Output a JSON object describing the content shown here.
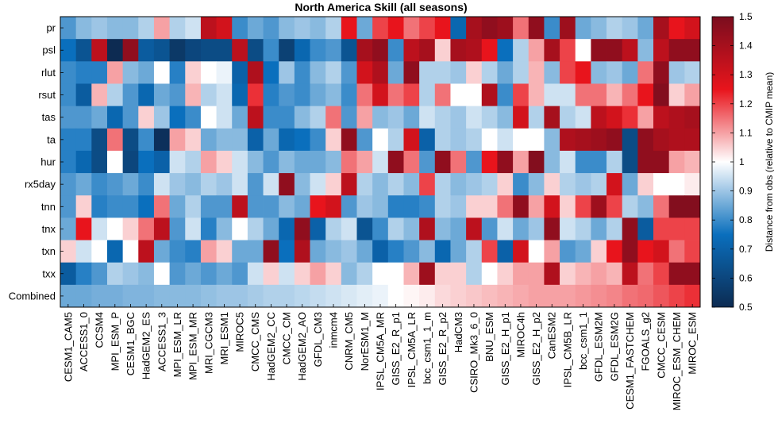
{
  "chart_data": {
    "type": "heatmap",
    "title": "North America Skill (all seasons)",
    "rows": [
      "pr",
      "psl",
      "rlut",
      "rsut",
      "tas",
      "ta",
      "hur",
      "rx5day",
      "tnn",
      "tnx",
      "txn",
      "txx",
      "Combined"
    ],
    "columns": [
      "CESM1_CAM5",
      "ACCESS1_0",
      "CCSM4",
      "MPI_ESM_P",
      "CESM1_BGC",
      "HadGEM2_ES",
      "ACCESS1_3",
      "MPI_ESM_LR",
      "MPI_ESM_MR",
      "MRI_CGCM3",
      "MRI_ESM1",
      "MIROC5",
      "CMCC_CMS",
      "HadGEM2_CC",
      "CMCC_CM",
      "HadGEM2_AO",
      "GFDL_CM3",
      "inmcm4",
      "CNRM_CM5",
      "NorESM1_M",
      "IPSL_CM5A_MR",
      "GISS_E2_R_p1",
      "IPSL_CM5A_LR",
      "bcc_csm1_1_m",
      "GISS_E2_R_p2",
      "HadCM3",
      "CSIRO_Mk3_6_0",
      "BNU_ESM",
      "GISS_E2_H_p1",
      "MIROC4h",
      "GISS_E2_H_p2",
      "CanESM2",
      "IPSL_CM5B_LR",
      "bcc_csm1_1",
      "GFDL_ESM2M",
      "GFDL_ESM2G",
      "CESM1_FASTCHEM",
      "FGOALS_g2",
      "CMCC_CESM",
      "MIROC_ESM_CHEM",
      "MIROC_ESM"
    ],
    "values": [
      [
        0.82,
        0.88,
        0.9,
        0.88,
        0.88,
        0.92,
        1.1,
        0.92,
        0.95,
        1.35,
        1.3,
        0.8,
        0.85,
        0.82,
        0.88,
        0.9,
        0.88,
        0.92,
        1.25,
        0.85,
        1.2,
        1.25,
        1.15,
        1.2,
        1.25,
        0.72,
        1.4,
        1.45,
        1.42,
        1.15,
        1.45,
        0.8,
        1.42,
        0.85,
        0.88,
        0.92,
        0.9,
        0.85,
        1.4,
        1.25,
        1.3
      ],
      [
        0.75,
        0.65,
        1.35,
        0.5,
        1.45,
        0.68,
        0.65,
        0.55,
        0.6,
        0.62,
        0.62,
        1.35,
        0.62,
        0.8,
        0.58,
        0.72,
        0.8,
        0.82,
        0.65,
        1.4,
        1.45,
        0.8,
        1.35,
        1.4,
        1.05,
        1.4,
        1.38,
        1.25,
        0.75,
        0.92,
        1.1,
        1.4,
        1.2,
        1.0,
        1.45,
        1.45,
        1.35,
        0.88,
        1.35,
        1.45,
        1.45
      ],
      [
        0.8,
        0.78,
        0.78,
        1.1,
        0.88,
        0.85,
        1.0,
        0.78,
        1.05,
        1.0,
        0.98,
        0.7,
        1.38,
        0.75,
        0.9,
        0.8,
        0.88,
        0.92,
        0.82,
        1.3,
        1.38,
        0.85,
        1.45,
        0.92,
        0.92,
        0.9,
        1.05,
        0.92,
        0.85,
        0.92,
        1.08,
        0.88,
        1.2,
        1.25,
        0.88,
        0.9,
        0.85,
        1.15,
        1.45,
        0.9,
        0.92
      ],
      [
        0.8,
        0.68,
        1.08,
        0.92,
        0.82,
        0.72,
        0.85,
        0.82,
        1.08,
        0.92,
        0.95,
        0.72,
        1.22,
        0.78,
        0.82,
        0.8,
        0.85,
        0.88,
        0.8,
        1.15,
        1.3,
        1.15,
        1.2,
        0.92,
        1.15,
        1.0,
        1.0,
        1.38,
        0.8,
        1.2,
        1.08,
        0.95,
        0.95,
        1.15,
        1.15,
        1.08,
        1.15,
        1.25,
        1.48,
        1.05,
        1.1
      ],
      [
        0.82,
        0.82,
        0.85,
        0.72,
        0.82,
        1.05,
        0.9,
        0.75,
        0.8,
        1.0,
        0.95,
        0.85,
        1.35,
        0.8,
        0.8,
        0.88,
        0.92,
        1.15,
        0.82,
        1.1,
        0.88,
        0.9,
        0.85,
        0.95,
        0.92,
        0.9,
        0.95,
        0.92,
        0.88,
        1.3,
        0.92,
        1.4,
        0.92,
        0.95,
        1.35,
        1.3,
        1.22,
        1.1,
        1.35,
        1.38,
        1.4
      ],
      [
        0.78,
        0.78,
        0.62,
        1.15,
        0.62,
        0.8,
        0.52,
        1.1,
        1.05,
        0.85,
        0.88,
        0.88,
        0.7,
        0.85,
        0.72,
        0.75,
        0.8,
        1.05,
        1.45,
        0.82,
        1.0,
        0.92,
        1.3,
        0.7,
        0.92,
        0.9,
        0.92,
        1.0,
        0.95,
        1.0,
        1.0,
        0.88,
        1.38,
        1.4,
        1.42,
        1.45,
        0.62,
        1.45,
        1.4,
        1.38,
        1.38
      ],
      [
        0.78,
        0.72,
        0.62,
        1.0,
        0.6,
        0.75,
        0.7,
        0.95,
        0.92,
        1.1,
        1.05,
        0.95,
        0.88,
        0.82,
        0.88,
        0.85,
        0.85,
        0.88,
        1.15,
        1.1,
        0.95,
        1.45,
        1.15,
        0.82,
        1.45,
        1.15,
        0.82,
        1.25,
        1.45,
        1.1,
        1.48,
        0.88,
        0.95,
        0.8,
        0.8,
        0.92,
        0.62,
        1.45,
        1.45,
        1.1,
        1.08
      ],
      [
        0.82,
        0.85,
        0.8,
        0.82,
        0.85,
        0.8,
        0.95,
        0.9,
        0.88,
        0.92,
        0.9,
        0.95,
        0.82,
        0.95,
        1.45,
        0.88,
        0.95,
        1.05,
        1.35,
        0.92,
        0.88,
        0.92,
        0.88,
        1.2,
        0.92,
        0.88,
        0.9,
        0.92,
        1.05,
        0.8,
        0.88,
        1.05,
        0.92,
        0.9,
        0.92,
        1.3,
        0.85,
        1.05,
        1.0,
        1.0,
        1.02
      ],
      [
        0.82,
        1.05,
        0.78,
        0.8,
        0.8,
        0.75,
        1.15,
        0.85,
        0.92,
        0.82,
        0.82,
        1.35,
        0.82,
        0.82,
        0.88,
        0.85,
        1.25,
        1.3,
        0.82,
        0.9,
        0.88,
        0.78,
        0.78,
        0.8,
        0.92,
        0.9,
        1.05,
        1.05,
        1.15,
        1.45,
        1.1,
        1.3,
        1.05,
        1.2,
        1.42,
        1.2,
        0.92,
        0.88,
        1.15,
        1.48,
        1.48
      ],
      [
        0.85,
        1.25,
        0.95,
        1.0,
        1.05,
        1.15,
        1.35,
        0.82,
        0.95,
        0.78,
        0.88,
        1.0,
        0.92,
        0.85,
        0.72,
        1.45,
        0.7,
        0.92,
        0.95,
        0.65,
        0.8,
        0.92,
        0.88,
        1.38,
        0.88,
        0.85,
        1.35,
        0.82,
        0.95,
        0.85,
        0.9,
        1.45,
        0.95,
        0.92,
        0.85,
        0.92,
        1.45,
        0.68,
        1.2,
        1.2,
        1.2
      ],
      [
        1.05,
        0.95,
        1.0,
        0.72,
        1.0,
        1.35,
        0.85,
        0.8,
        0.78,
        1.1,
        1.05,
        0.85,
        0.85,
        1.45,
        0.75,
        1.38,
        0.85,
        0.88,
        0.9,
        0.85,
        0.7,
        0.78,
        0.82,
        0.88,
        0.72,
        0.85,
        0.92,
        1.2,
        0.7,
        1.3,
        1.0,
        1.1,
        0.82,
        0.85,
        1.05,
        1.25,
        1.45,
        1.25,
        1.3,
        1.15,
        1.2
      ],
      [
        0.68,
        0.78,
        0.82,
        0.92,
        0.9,
        0.88,
        1.0,
        0.82,
        0.85,
        0.82,
        0.85,
        0.82,
        0.95,
        1.05,
        0.95,
        1.05,
        1.1,
        1.05,
        0.88,
        0.92,
        1.0,
        1.0,
        1.08,
        1.42,
        1.05,
        1.05,
        0.92,
        1.0,
        1.05,
        1.1,
        1.1,
        1.38,
        1.05,
        1.08,
        1.1,
        1.08,
        1.35,
        1.15,
        1.2,
        1.45,
        1.45
      ],
      [
        0.85,
        0.85,
        0.86,
        0.86,
        0.87,
        0.87,
        0.88,
        0.88,
        0.88,
        0.89,
        0.9,
        0.9,
        0.91,
        0.92,
        0.92,
        0.93,
        0.94,
        0.95,
        0.96,
        0.97,
        0.98,
        1.0,
        1.01,
        1.02,
        1.04,
        1.05,
        1.06,
        1.07,
        1.08,
        1.09,
        1.1,
        1.1,
        1.1,
        1.11,
        1.12,
        1.13,
        1.15,
        1.16,
        1.18,
        1.2,
        1.22
      ]
    ],
    "colorbar": {
      "min": 0.5,
      "max": 1.5,
      "ticks": [
        "0.5",
        "0.6",
        "0.7",
        "0.8",
        "0.9",
        "1",
        "1.1",
        "1.2",
        "1.3",
        "1.4",
        "1.5"
      ],
      "label": "Distance from obs (relative to CMIP mean)",
      "colors": {
        "low": "#0d2b52",
        "mid_low": "#0a6fbd",
        "mid": "#ffffff",
        "mid_high": "#e8141c",
        "high": "#7a0d1e"
      }
    }
  }
}
